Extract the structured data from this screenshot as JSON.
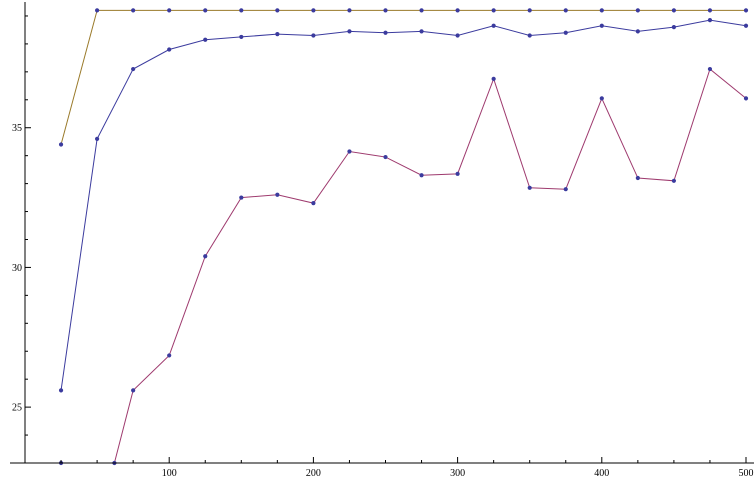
{
  "chart_data": {
    "type": "line",
    "title": "",
    "xlabel": "",
    "ylabel": "",
    "xlim": [
      0,
      500
    ],
    "ylim": [
      23,
      39.5
    ],
    "x_ticks": [
      {
        "value": 100,
        "label": "100"
      },
      {
        "value": 200,
        "label": "200"
      },
      {
        "value": 300,
        "label": "300"
      },
      {
        "value": 400,
        "label": "400"
      },
      {
        "value": 500,
        "label": "500"
      }
    ],
    "y_ticks": [
      {
        "value": 25,
        "label": "25"
      },
      {
        "value": 30,
        "label": "30"
      },
      {
        "value": 35,
        "label": "35"
      }
    ],
    "grid": false,
    "legend": "none",
    "series": [
      {
        "color": "#9a7a2a",
        "marker_color": "#3b3b9e",
        "x": [
          25,
          50,
          75,
          100,
          125,
          150,
          175,
          200,
          225,
          250,
          275,
          300,
          325,
          350,
          375,
          400,
          425,
          450,
          475,
          500
        ],
        "y": [
          34.4,
          39.2,
          39.2,
          39.2,
          39.2,
          39.2,
          39.2,
          39.2,
          39.2,
          39.2,
          39.2,
          39.2,
          39.2,
          39.2,
          39.2,
          39.2,
          39.2,
          39.2,
          39.2,
          39.2
        ]
      },
      {
        "color": "#3b3b9e",
        "marker_color": "#3b3b9e",
        "x": [
          25,
          50,
          75,
          100,
          125,
          150,
          175,
          200,
          225,
          250,
          275,
          300,
          325,
          350,
          375,
          400,
          425,
          450,
          475,
          500
        ],
        "y": [
          25.6,
          34.6,
          37.1,
          37.8,
          38.15,
          38.25,
          38.35,
          38.3,
          38.45,
          38.4,
          38.45,
          38.3,
          38.65,
          38.3,
          38.4,
          38.65,
          38.45,
          38.6,
          38.85,
          38.65
        ]
      },
      {
        "color": "#9e3a6e",
        "marker_color": "#3b3b9e",
        "x": [
          25,
          62,
          75,
          100,
          125,
          150,
          175,
          200,
          225,
          250,
          275,
          300,
          325,
          350,
          375,
          400,
          425,
          450,
          475,
          500
        ],
        "y": [
          23.0,
          23.0,
          25.6,
          26.85,
          30.4,
          32.5,
          32.6,
          32.3,
          34.15,
          33.95,
          33.3,
          33.35,
          36.75,
          32.85,
          32.8,
          36.05,
          33.2,
          33.1,
          37.1,
          36.05
        ]
      }
    ]
  }
}
